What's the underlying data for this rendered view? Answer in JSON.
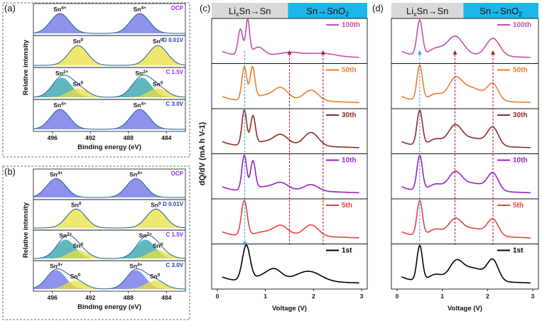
{
  "panels": {
    "a": {
      "letter": "(a)"
    },
    "b": {
      "letter": "(b)"
    },
    "c": {
      "letter": "(c)"
    },
    "d": {
      "letter": "(d)"
    }
  },
  "chart_data": [
    {
      "id": "a",
      "type": "line",
      "title": "",
      "xlabel": "Binding energy (eV)",
      "ylabel": "Relative intensity",
      "xlim": [
        498,
        482
      ],
      "xticks": [
        "496",
        "492",
        "488",
        "484"
      ],
      "xtick_values": [
        496,
        492,
        488,
        484
      ],
      "states": [
        {
          "name": "OCP",
          "peaks": [
            {
              "label": "Sn4+",
              "center": 495.2,
              "fill": "#6a6ee6"
            },
            {
              "label": "Sn4+",
              "center": 486.8,
              "fill": "#6a6ee6"
            }
          ]
        },
        {
          "name": "D 0.01V",
          "peaks": [
            {
              "label": "Sn0",
              "center": 493.3,
              "fill": "#e8e040"
            },
            {
              "label": "Sn0",
              "center": 484.9,
              "fill": "#e8e040"
            }
          ]
        },
        {
          "name": "C 1.5V",
          "peaks": [
            {
              "label": "Sn2+",
              "center": 495.0,
              "fill": "#2aa0a8"
            },
            {
              "label": "Sn0",
              "center": 493.3,
              "fill": "#e8e040"
            },
            {
              "label": "Sn2+",
              "center": 486.6,
              "fill": "#2aa0a8"
            },
            {
              "label": "Sn0",
              "center": 484.9,
              "fill": "#e8e040"
            }
          ]
        },
        {
          "name": "C 3.0V",
          "peaks": [
            {
              "label": "Sn4+",
              "center": 495.2,
              "fill": "#6a6ee6"
            },
            {
              "label": "Sn4+",
              "center": 486.8,
              "fill": "#6a6ee6"
            }
          ]
        }
      ]
    },
    {
      "id": "b",
      "type": "line",
      "title": "",
      "xlabel": "Binding energy (eV)",
      "ylabel": "Relative intensity",
      "xlim": [
        498,
        482
      ],
      "xticks": [
        "496",
        "492",
        "488",
        "484"
      ],
      "xtick_values": [
        496,
        492,
        488,
        484
      ],
      "states": [
        {
          "name": "OCP",
          "peaks": [
            {
              "label": "Sn4+",
              "center": 495.6,
              "fill": "#6a6ee6"
            },
            {
              "label": "Sn4+",
              "center": 487.2,
              "fill": "#6a6ee6"
            }
          ]
        },
        {
          "name": "D 0.01V",
          "peaks": [
            {
              "label": "Sn0",
              "center": 493.5,
              "fill": "#e8e040"
            },
            {
              "label": "Sn0",
              "center": 485.1,
              "fill": "#e8e040"
            }
          ]
        },
        {
          "name": "C 1.5V",
          "peaks": [
            {
              "label": "Sn2+",
              "center": 494.6,
              "fill": "#2aa0a8"
            },
            {
              "label": "Sn0",
              "center": 493.3,
              "fill": "#e8e040"
            },
            {
              "label": "Sn2+",
              "center": 486.2,
              "fill": "#2aa0a8"
            },
            {
              "label": "Sn0",
              "center": 484.9,
              "fill": "#e8e040"
            }
          ]
        },
        {
          "name": "C 3.0V",
          "peaks": [
            {
              "label": "Sn4+",
              "center": 495.6,
              "fill": "#6a6ee6"
            },
            {
              "label": "Sn0",
              "center": 493.6,
              "fill": "#e8e040"
            },
            {
              "label": "Sn4+",
              "center": 487.2,
              "fill": "#6a6ee6"
            },
            {
              "label": "Sn0",
              "center": 485.2,
              "fill": "#e8e040"
            }
          ]
        }
      ]
    },
    {
      "id": "c",
      "type": "line",
      "title": "",
      "xlabel": "Voltage (V)",
      "ylabel": "dQ/dV (mA h V-1)",
      "xlim": [
        0,
        3
      ],
      "xticks": [
        "0",
        "1",
        "2",
        "3"
      ],
      "xtick_values": [
        0,
        1,
        2,
        3
      ],
      "header_left": "LixSn→Sn",
      "header_right": "Sn→SnO2",
      "header_right_color": "#1ab7ea",
      "dashed_lines": [
        {
          "x": 0.57,
          "color": "#4a9fd8",
          "direction": "down"
        },
        {
          "x": 1.5,
          "color": "#b0211f",
          "direction": "up"
        },
        {
          "x": 2.2,
          "color": "#b0211f",
          "direction": "up"
        }
      ],
      "series": [
        {
          "name": "100th",
          "color": "#c24fae",
          "peaks": [
            [
              0.48,
              0.75,
              0.05
            ],
            [
              0.63,
              1.0,
              0.04
            ],
            [
              0.85,
              0.25,
              0.12
            ],
            [
              1.5,
              0.08,
              0.25
            ],
            [
              2.2,
              0.08,
              0.25
            ]
          ]
        },
        {
          "name": "50th",
          "color": "#ee7d2b",
          "peaks": [
            [
              0.56,
              0.95,
              0.05
            ],
            [
              0.73,
              0.9,
              0.05
            ],
            [
              1.32,
              0.35,
              0.15
            ],
            [
              1.95,
              0.3,
              0.15
            ],
            [
              0.95,
              0.15,
              0.2
            ]
          ]
        },
        {
          "name": "30th",
          "color": "#8a2d2a",
          "peaks": [
            [
              0.56,
              1.0,
              0.05
            ],
            [
              0.74,
              0.8,
              0.05
            ],
            [
              1.32,
              0.3,
              0.15
            ],
            [
              1.95,
              0.38,
              0.15
            ],
            [
              0.95,
              0.12,
              0.2
            ]
          ]
        },
        {
          "name": "10th",
          "color": "#9a1fc6",
          "peaks": [
            [
              0.56,
              1.0,
              0.05
            ],
            [
              0.74,
              0.8,
              0.05
            ],
            [
              1.32,
              0.22,
              0.15
            ],
            [
              1.95,
              0.18,
              0.15
            ],
            [
              0.95,
              0.12,
              0.2
            ]
          ]
        },
        {
          "name": "5th",
          "color": "#e34244",
          "peaks": [
            [
              0.56,
              1.0,
              0.06
            ],
            [
              1.32,
              0.28,
              0.15
            ],
            [
              1.95,
              0.32,
              0.15
            ],
            [
              0.95,
              0.12,
              0.2
            ]
          ]
        },
        {
          "name": "1st",
          "color": "#000000",
          "peaks": [
            [
              0.6,
              1.0,
              0.08
            ],
            [
              1.2,
              0.28,
              0.15
            ],
            [
              1.9,
              0.28,
              0.25
            ],
            [
              0.95,
              0.15,
              0.2
            ]
          ]
        }
      ]
    },
    {
      "id": "d",
      "type": "line",
      "title": "",
      "xlabel": "Voltage (V)",
      "ylabel": "",
      "xlim": [
        0,
        3
      ],
      "xticks": [
        "0",
        "1",
        "2",
        "3"
      ],
      "xtick_values": [
        0,
        1,
        2,
        3
      ],
      "header_left": "LixSn→Sn",
      "header_right": "Sn→SnO2",
      "header_right_color": "#1ab7ea",
      "dashed_lines": [
        {
          "x": 0.5,
          "color": "#4a9fd8",
          "direction": "up"
        },
        {
          "x": 1.28,
          "color": "#b0211f",
          "direction": "up"
        },
        {
          "x": 2.12,
          "color": "#b0211f",
          "direction": "up"
        }
      ],
      "series": [
        {
          "name": "100th",
          "color": "#c24fae",
          "peaks": [
            [
              0.5,
              1.0,
              0.06
            ],
            [
              1.28,
              0.55,
              0.18
            ],
            [
              2.12,
              0.5,
              0.15
            ],
            [
              0.85,
              0.2,
              0.15
            ]
          ]
        },
        {
          "name": "50th",
          "color": "#ee7d2b",
          "peaks": [
            [
              0.5,
              1.0,
              0.06
            ],
            [
              1.28,
              0.55,
              0.15
            ],
            [
              2.12,
              0.45,
              0.12
            ],
            [
              1.65,
              0.35,
              0.25
            ],
            [
              0.85,
              0.2,
              0.15
            ]
          ]
        },
        {
          "name": "30th",
          "color": "#8a2d2a",
          "peaks": [
            [
              0.5,
              1.0,
              0.06
            ],
            [
              1.28,
              0.55,
              0.15
            ],
            [
              2.12,
              0.5,
              0.12
            ],
            [
              1.7,
              0.2,
              0.25
            ],
            [
              0.85,
              0.2,
              0.15
            ]
          ]
        },
        {
          "name": "10th",
          "color": "#9a1fc6",
          "peaks": [
            [
              0.5,
              1.0,
              0.06
            ],
            [
              1.28,
              0.5,
              0.15
            ],
            [
              2.12,
              0.48,
              0.12
            ],
            [
              1.7,
              0.2,
              0.25
            ],
            [
              0.85,
              0.2,
              0.15
            ]
          ]
        },
        {
          "name": "5th",
          "color": "#e34244",
          "peaks": [
            [
              0.5,
              1.0,
              0.06
            ],
            [
              1.28,
              0.45,
              0.15
            ],
            [
              2.12,
              0.45,
              0.12
            ],
            [
              1.7,
              0.2,
              0.25
            ],
            [
              0.85,
              0.2,
              0.15
            ]
          ]
        },
        {
          "name": "1st",
          "color": "#000000",
          "peaks": [
            [
              0.5,
              1.0,
              0.06
            ],
            [
              1.3,
              0.5,
              0.15
            ],
            [
              2.12,
              0.55,
              0.12
            ],
            [
              1.7,
              0.35,
              0.25
            ],
            [
              0.85,
              0.2,
              0.15
            ]
          ]
        }
      ]
    }
  ]
}
